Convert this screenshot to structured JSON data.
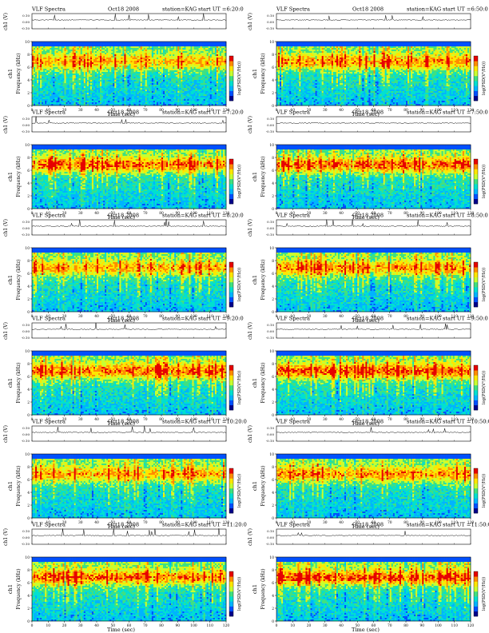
{
  "figure": {
    "title_prefix": "VLF Spectra",
    "station": "station=KAG",
    "start_label": "start UT",
    "xlabel": "Time (sec)",
    "ylabel_top": "ch1 (V)",
    "ylabel_channel": "ch1",
    "ylabel_freq": "Frequency (kHz)",
    "colorbar_label": "log(PSD(V²/Hz))",
    "waveform_ticks": [
      "0.10",
      "0.00",
      "-0.10"
    ]
  },
  "chart_data": [
    {
      "type": "heatmap",
      "column": "left",
      "row": 0,
      "date": "Oct18 2008",
      "start_ut": "6:20:0",
      "xlim": [
        0,
        120
      ],
      "ylim": [
        0,
        10
      ],
      "xticks": [
        0,
        10,
        20,
        30,
        40,
        50,
        60,
        70,
        80,
        90,
        100,
        110,
        120
      ],
      "yticks": [
        0,
        2,
        4,
        6,
        8,
        10
      ],
      "colormap": [
        "#00008b",
        "#0050ff",
        "#00b4ff",
        "#00e0d0",
        "#40e080",
        "#c8ff30",
        "#ffe600",
        "#ff8c00",
        "#e60000"
      ]
    },
    {
      "type": "heatmap",
      "column": "right",
      "row": 0,
      "date": "Oct18 2008",
      "start_ut": "6:50:0",
      "xlim": [
        0,
        120
      ],
      "ylim": [
        0,
        10
      ],
      "xticks": [
        0,
        10,
        20,
        30,
        40,
        50,
        60,
        70,
        80,
        90,
        100,
        110,
        120
      ],
      "yticks": [
        0,
        2,
        4,
        6,
        8,
        10
      ],
      "colormap": [
        "#00008b",
        "#0050ff",
        "#00b4ff",
        "#00e0d0",
        "#40e080",
        "#c8ff30",
        "#ffe600",
        "#ff8c00",
        "#e60000"
      ]
    },
    {
      "type": "heatmap",
      "column": "left",
      "row": 1,
      "date": "Oct18 2008",
      "start_ut": "7:20:0",
      "xlim": [
        0,
        120
      ],
      "ylim": [
        0,
        10
      ],
      "xticks": [
        0,
        10,
        20,
        30,
        40,
        50,
        60,
        70,
        80,
        90,
        100,
        110,
        120
      ],
      "yticks": [
        0,
        2,
        4,
        6,
        8,
        10
      ],
      "colormap": [
        "#00008b",
        "#0050ff",
        "#00b4ff",
        "#00e0d0",
        "#40e080",
        "#c8ff30",
        "#ffe600",
        "#ff8c00",
        "#e60000"
      ]
    },
    {
      "type": "heatmap",
      "column": "right",
      "row": 1,
      "date": "Oct18 2008",
      "start_ut": "7:50:0",
      "xlim": [
        0,
        120
      ],
      "ylim": [
        0,
        10
      ],
      "xticks": [
        0,
        10,
        20,
        30,
        40,
        50,
        60,
        70,
        80,
        90,
        100,
        110,
        120
      ],
      "yticks": [
        0,
        2,
        4,
        6,
        8,
        10
      ],
      "colormap": [
        "#00008b",
        "#0050ff",
        "#00b4ff",
        "#00e0d0",
        "#40e080",
        "#c8ff30",
        "#ffe600",
        "#ff8c00",
        "#e60000"
      ]
    },
    {
      "type": "heatmap",
      "column": "left",
      "row": 2,
      "date": "Oct18 2008",
      "start_ut": "8:20:0",
      "xlim": [
        0,
        120
      ],
      "ylim": [
        0,
        10
      ],
      "xticks": [
        0,
        10,
        20,
        30,
        40,
        50,
        60,
        70,
        80,
        90,
        100,
        110,
        120
      ],
      "yticks": [
        0,
        2,
        4,
        6,
        8,
        10
      ],
      "colormap": [
        "#00008b",
        "#0050ff",
        "#00b4ff",
        "#00e0d0",
        "#40e080",
        "#c8ff30",
        "#ffe600",
        "#ff8c00",
        "#e60000"
      ]
    },
    {
      "type": "heatmap",
      "column": "right",
      "row": 2,
      "date": "Oct18 2008",
      "start_ut": "8:50:0",
      "xlim": [
        0,
        120
      ],
      "ylim": [
        0,
        10
      ],
      "xticks": [
        0,
        10,
        20,
        30,
        40,
        50,
        60,
        70,
        80,
        90,
        100,
        110,
        120
      ],
      "yticks": [
        0,
        2,
        4,
        6,
        8,
        10
      ],
      "colormap": [
        "#00008b",
        "#0050ff",
        "#00b4ff",
        "#00e0d0",
        "#40e080",
        "#c8ff30",
        "#ffe600",
        "#ff8c00",
        "#e60000"
      ]
    },
    {
      "type": "heatmap",
      "column": "left",
      "row": 3,
      "date": "Oct18 2008",
      "start_ut": "9:20:0",
      "xlim": [
        0,
        120
      ],
      "ylim": [
        0,
        10
      ],
      "xticks": [
        0,
        10,
        20,
        30,
        40,
        50,
        60,
        70,
        80,
        90,
        100,
        110,
        120
      ],
      "yticks": [
        0,
        2,
        4,
        6,
        8,
        10
      ],
      "colormap": [
        "#00008b",
        "#0050ff",
        "#00b4ff",
        "#00e0d0",
        "#40e080",
        "#c8ff30",
        "#ffe600",
        "#ff8c00",
        "#e60000"
      ]
    },
    {
      "type": "heatmap",
      "column": "right",
      "row": 3,
      "date": "Oct18 2008",
      "start_ut": "9:50:0",
      "xlim": [
        0,
        120
      ],
      "ylim": [
        0,
        10
      ],
      "xticks": [
        0,
        10,
        20,
        30,
        40,
        50,
        60,
        70,
        80,
        90,
        100,
        110,
        120
      ],
      "yticks": [
        0,
        2,
        4,
        6,
        8,
        10
      ],
      "colormap": [
        "#00008b",
        "#0050ff",
        "#00b4ff",
        "#00e0d0",
        "#40e080",
        "#c8ff30",
        "#ffe600",
        "#ff8c00",
        "#e60000"
      ]
    },
    {
      "type": "heatmap",
      "column": "left",
      "row": 4,
      "date": "Oct18 2008",
      "start_ut": "10:20:0",
      "xlim": [
        0,
        120
      ],
      "ylim": [
        0,
        10
      ],
      "xticks": [
        0,
        10,
        20,
        30,
        40,
        50,
        60,
        70,
        80,
        90,
        100,
        110,
        120
      ],
      "yticks": [
        0,
        2,
        4,
        6,
        8,
        10
      ],
      "colormap": [
        "#00008b",
        "#0050ff",
        "#00b4ff",
        "#00e0d0",
        "#40e080",
        "#c8ff30",
        "#ffe600",
        "#ff8c00",
        "#e60000"
      ]
    },
    {
      "type": "heatmap",
      "column": "right",
      "row": 4,
      "date": "Oct18 2008",
      "start_ut": "10:50:0",
      "xlim": [
        0,
        120
      ],
      "ylim": [
        0,
        10
      ],
      "xticks": [
        0,
        10,
        20,
        30,
        40,
        50,
        60,
        70,
        80,
        90,
        100,
        110,
        120
      ],
      "yticks": [
        0,
        2,
        4,
        6,
        8,
        10
      ],
      "colormap": [
        "#00008b",
        "#0050ff",
        "#00b4ff",
        "#00e0d0",
        "#40e080",
        "#c8ff30",
        "#ffe600",
        "#ff8c00",
        "#e60000"
      ]
    },
    {
      "type": "heatmap",
      "column": "left",
      "row": 5,
      "date": "Oct18 2008",
      "start_ut": "11:20:0",
      "xlim": [
        0,
        120
      ],
      "ylim": [
        0,
        10
      ],
      "xticks": [
        0,
        10,
        20,
        30,
        40,
        50,
        60,
        70,
        80,
        90,
        100,
        110,
        120
      ],
      "yticks": [
        0,
        2,
        4,
        6,
        8,
        10
      ],
      "colormap": [
        "#00008b",
        "#0050ff",
        "#00b4ff",
        "#00e0d0",
        "#40e080",
        "#c8ff30",
        "#ffe600",
        "#ff8c00",
        "#e60000"
      ]
    },
    {
      "type": "heatmap",
      "column": "right",
      "row": 5,
      "date": "Oct18 2008",
      "start_ut": "11:50:0",
      "xlim": [
        0,
        120
      ],
      "ylim": [
        0,
        10
      ],
      "xticks": [
        0,
        10,
        20,
        30,
        40,
        50,
        60,
        70,
        80,
        90,
        100,
        110,
        120
      ],
      "yticks": [
        0,
        2,
        4,
        6,
        8,
        10
      ],
      "colormap": [
        "#00008b",
        "#0050ff",
        "#00b4ff",
        "#00e0d0",
        "#40e080",
        "#c8ff30",
        "#ffe600",
        "#ff8c00",
        "#e60000"
      ]
    }
  ]
}
